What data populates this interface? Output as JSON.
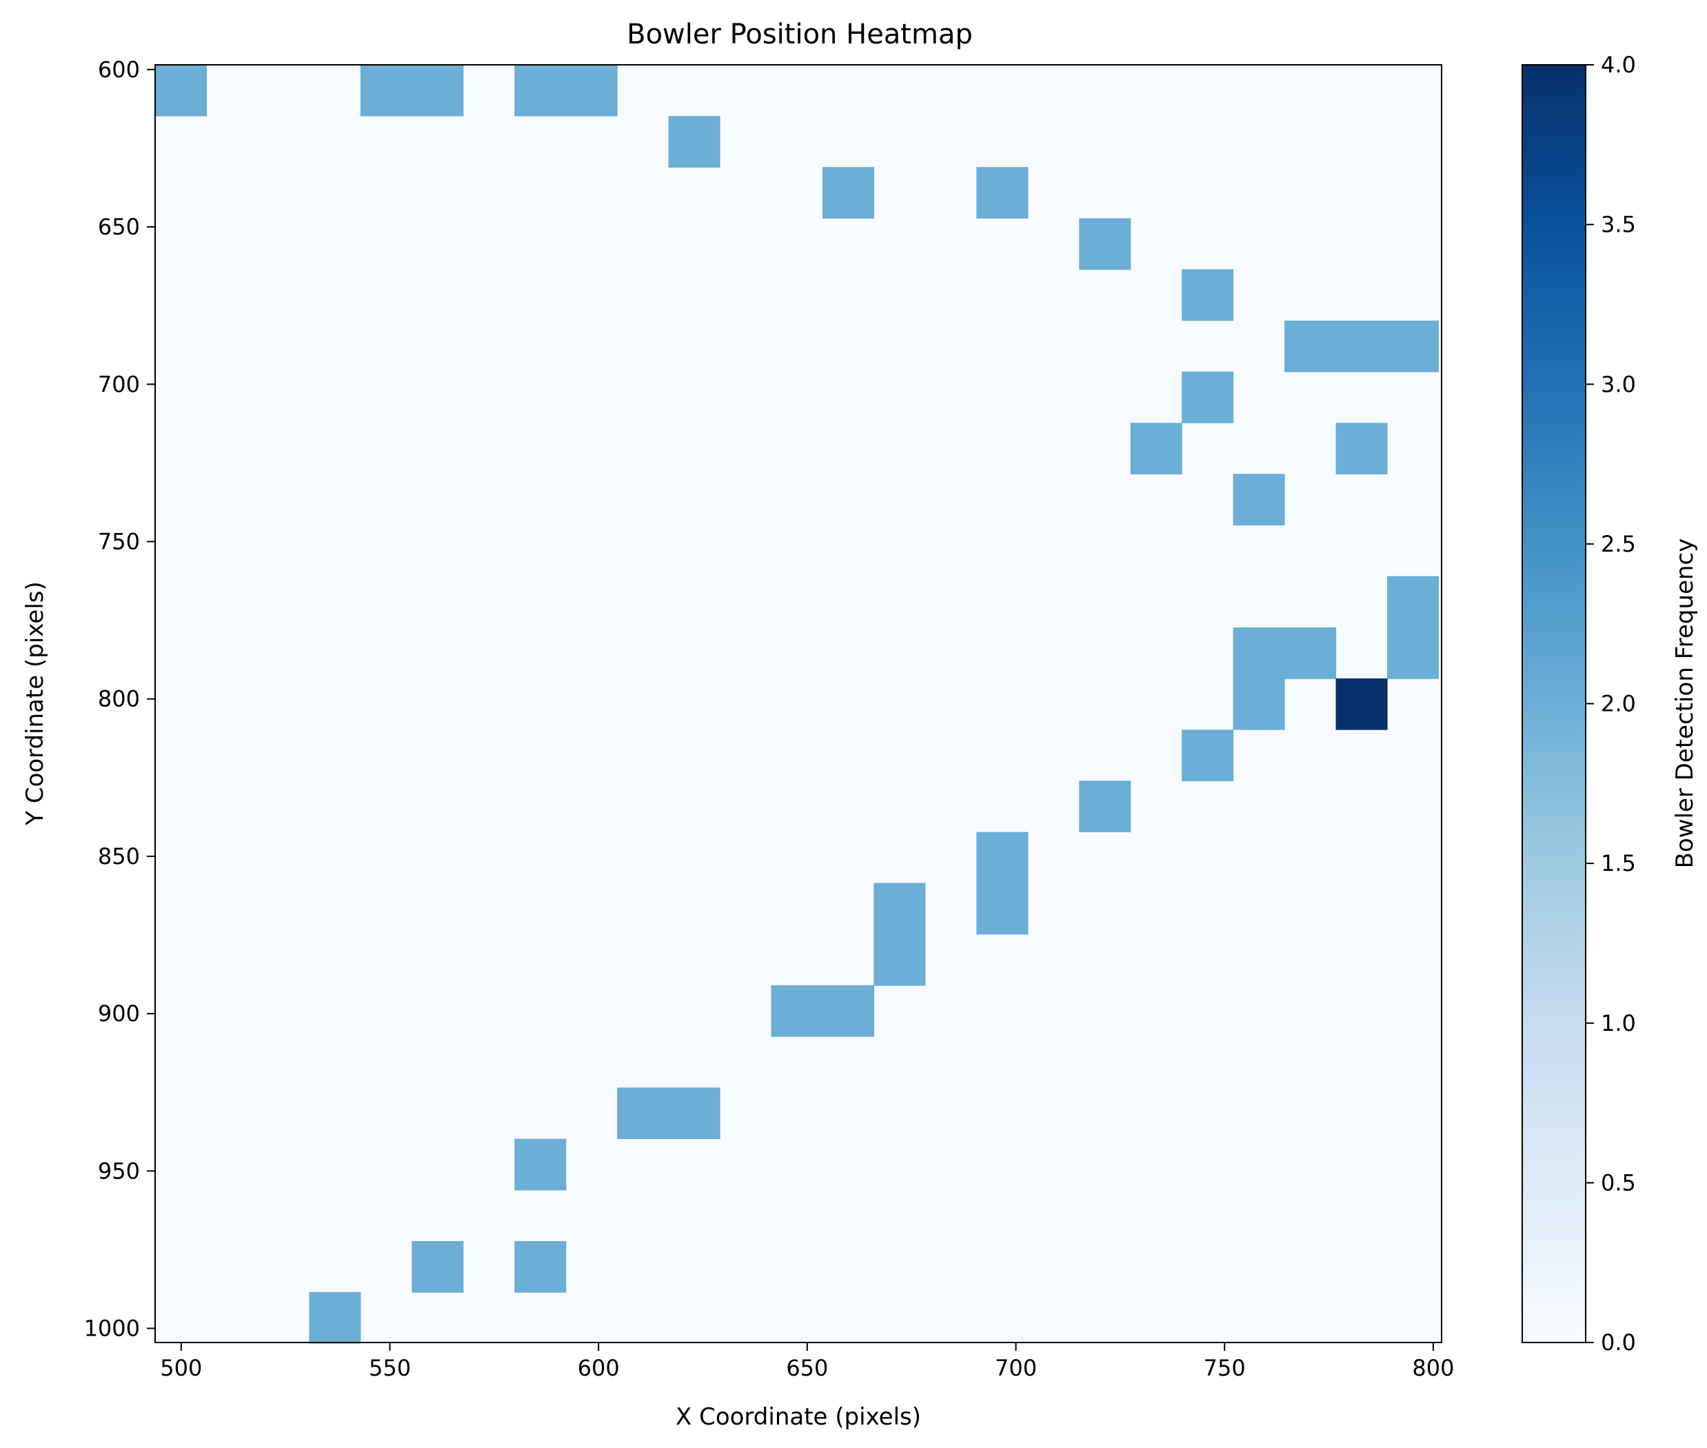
{
  "chart_data": {
    "type": "heatmap",
    "title": "Bowler Position Heatmap",
    "xlabel": "X Coordinate (pixels)",
    "ylabel": "Y Coordinate (pixels)",
    "colorbar_label": "Bowler Detection Frequency",
    "xlim": [
      493.75,
      802
    ],
    "ylim": [
      1004.5,
      598.5
    ],
    "y_inverted": true,
    "bin_width": 12.3,
    "bin_height": 16.25,
    "x_ticks": [
      500,
      550,
      600,
      650,
      700,
      750,
      800
    ],
    "y_ticks": [
      600,
      650,
      700,
      750,
      800,
      850,
      900,
      950,
      1000
    ],
    "colorbar_range": [
      0,
      4
    ],
    "colorbar_ticks": [
      "0.0",
      "0.5",
      "1.0",
      "1.5",
      "2.0",
      "2.5",
      "3.0",
      "3.5",
      "4.0"
    ],
    "colormap": [
      "#f7fbff",
      "#deebf7",
      "#c6dbef",
      "#9ecae1",
      "#6baed6",
      "#4292c6",
      "#2171b5",
      "#08519c",
      "#08306b"
    ],
    "background_color": "#f7fbff",
    "grid": false,
    "cells": [
      {
        "x": 499.9,
        "y": 606.6,
        "count": 2
      },
      {
        "x": 549.1,
        "y": 606.6,
        "count": 2
      },
      {
        "x": 561.4,
        "y": 606.6,
        "count": 2
      },
      {
        "x": 586.0,
        "y": 606.6,
        "count": 2
      },
      {
        "x": 598.3,
        "y": 606.6,
        "count": 2
      },
      {
        "x": 622.9,
        "y": 622.9,
        "count": 2
      },
      {
        "x": 659.8,
        "y": 639.1,
        "count": 2
      },
      {
        "x": 696.7,
        "y": 639.1,
        "count": 2
      },
      {
        "x": 721.3,
        "y": 655.4,
        "count": 2
      },
      {
        "x": 745.9,
        "y": 671.6,
        "count": 2
      },
      {
        "x": 770.5,
        "y": 687.9,
        "count": 2
      },
      {
        "x": 782.8,
        "y": 687.9,
        "count": 2
      },
      {
        "x": 795.1,
        "y": 687.9,
        "count": 2
      },
      {
        "x": 745.9,
        "y": 704.1,
        "count": 2
      },
      {
        "x": 733.6,
        "y": 720.4,
        "count": 2
      },
      {
        "x": 782.8,
        "y": 720.4,
        "count": 2
      },
      {
        "x": 758.2,
        "y": 736.6,
        "count": 2
      },
      {
        "x": 795.1,
        "y": 769.1,
        "count": 2
      },
      {
        "x": 758.2,
        "y": 785.4,
        "count": 2
      },
      {
        "x": 770.5,
        "y": 785.4,
        "count": 2
      },
      {
        "x": 795.1,
        "y": 785.4,
        "count": 2
      },
      {
        "x": 758.2,
        "y": 801.6,
        "count": 2
      },
      {
        "x": 782.8,
        "y": 801.6,
        "count": 4
      },
      {
        "x": 745.9,
        "y": 817.9,
        "count": 2
      },
      {
        "x": 721.3,
        "y": 834.1,
        "count": 2
      },
      {
        "x": 696.7,
        "y": 850.4,
        "count": 2
      },
      {
        "x": 696.7,
        "y": 866.6,
        "count": 2
      },
      {
        "x": 672.1,
        "y": 866.6,
        "count": 2
      },
      {
        "x": 672.1,
        "y": 882.9,
        "count": 2
      },
      {
        "x": 647.5,
        "y": 899.1,
        "count": 2
      },
      {
        "x": 659.8,
        "y": 899.1,
        "count": 2
      },
      {
        "x": 610.6,
        "y": 931.6,
        "count": 2
      },
      {
        "x": 622.9,
        "y": 931.6,
        "count": 2
      },
      {
        "x": 586.0,
        "y": 947.9,
        "count": 2
      },
      {
        "x": 561.4,
        "y": 980.4,
        "count": 2
      },
      {
        "x": 586.0,
        "y": 980.4,
        "count": 2
      },
      {
        "x": 536.8,
        "y": 996.6,
        "count": 2
      }
    ]
  }
}
